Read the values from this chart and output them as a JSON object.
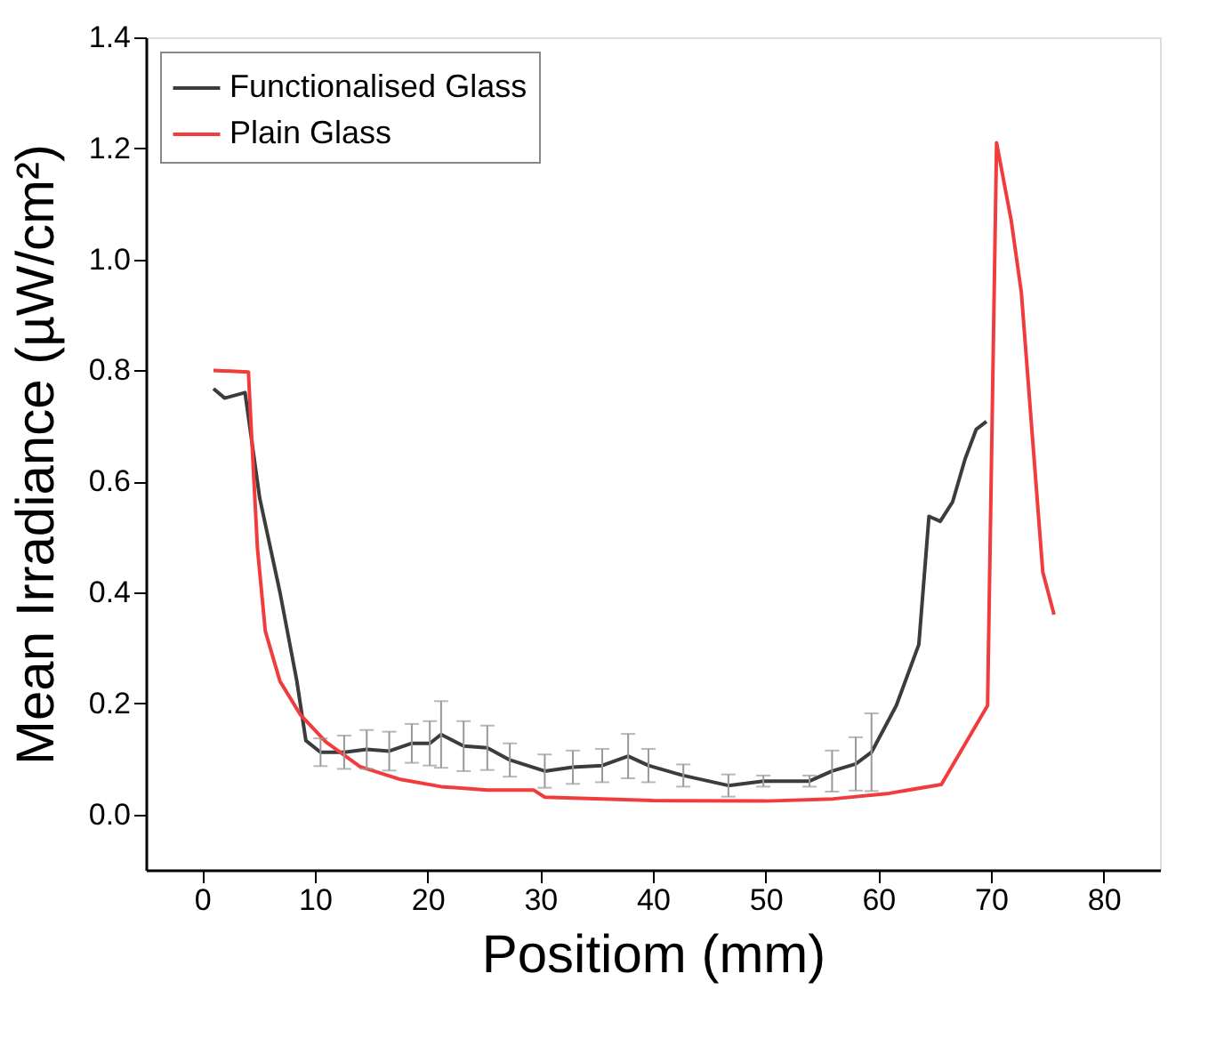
{
  "chart_data": {
    "type": "line",
    "xlabel": "Positiom (mm)",
    "ylabel": "Mean Irradiance (µW/cm²)",
    "xlim": [
      -5,
      85
    ],
    "xticks": [
      0,
      10,
      20,
      30,
      40,
      50,
      60,
      70,
      80
    ],
    "ylim": [
      -0.1,
      1.4
    ],
    "yticks": [
      {
        "value": 0,
        "label": "0.0"
      },
      0.2,
      0.4,
      0.6,
      0.8,
      {
        "value": 1,
        "label": "1.0"
      },
      1.2,
      1.4
    ],
    "grid": false,
    "legend": "top left",
    "marker": "none",
    "line_style": "solid",
    "series": [
      {
        "name": "Functionalised Glass",
        "color": "#3c3c3c",
        "x": [
          1,
          2,
          3.8,
          5.1,
          6.9,
          8.4,
          9.2,
          10.5,
          12.6,
          14.6,
          16.6,
          18.6,
          20.2,
          21.2,
          23.2,
          25.3,
          27.3,
          30.4,
          32.9,
          35.5,
          37.8,
          39.6,
          42.7,
          46.7,
          49.8,
          53.9,
          55.9,
          58,
          59.4,
          61.6,
          63.6,
          64.5,
          65.5,
          66.6,
          67.7,
          68.7,
          69.6
        ],
        "values": [
          0.767,
          0.75,
          0.76,
          0.57,
          0.4,
          0.24,
          0.133,
          0.112,
          0.112,
          0.117,
          0.114,
          0.128,
          0.128,
          0.144,
          0.123,
          0.12,
          0.098,
          0.078,
          0.085,
          0.088,
          0.105,
          0.088,
          0.07,
          0.052,
          0.06,
          0.06,
          0.078,
          0.091,
          0.112,
          0.196,
          0.306,
          0.537,
          0.528,
          0.563,
          0.64,
          0.694,
          0.708
        ],
        "errors": [
          null,
          null,
          null,
          null,
          null,
          null,
          null,
          0.025,
          0.03,
          0.035,
          0.035,
          0.035,
          0.04,
          0.06,
          0.045,
          0.04,
          0.03,
          0.03,
          0.03,
          0.03,
          0.04,
          0.03,
          0.02,
          0.02,
          0.01,
          0.01,
          0.037,
          0.048,
          0.07,
          null,
          null,
          null,
          null,
          null,
          null,
          null,
          null
        ]
      },
      {
        "name": "Plain Glass",
        "color": "#f03c3c",
        "x": [
          1,
          4.1,
          4.3,
          4.9,
          5.6,
          6.9,
          8.7,
          11,
          14,
          17.6,
          21.2,
          25.3,
          29.4,
          30.4,
          40,
          50,
          56,
          61,
          65.6,
          69.7,
          70.5,
          71.8,
          72.7,
          74.6,
          75.6
        ],
        "values": [
          0.8,
          0.797,
          0.715,
          0.48,
          0.33,
          0.24,
          0.18,
          0.13,
          0.086,
          0.063,
          0.05,
          0.044,
          0.044,
          0.031,
          0.025,
          0.024,
          0.028,
          0.038,
          0.054,
          0.196,
          1.21,
          1.07,
          0.94,
          0.437,
          0.36
        ]
      }
    ]
  }
}
